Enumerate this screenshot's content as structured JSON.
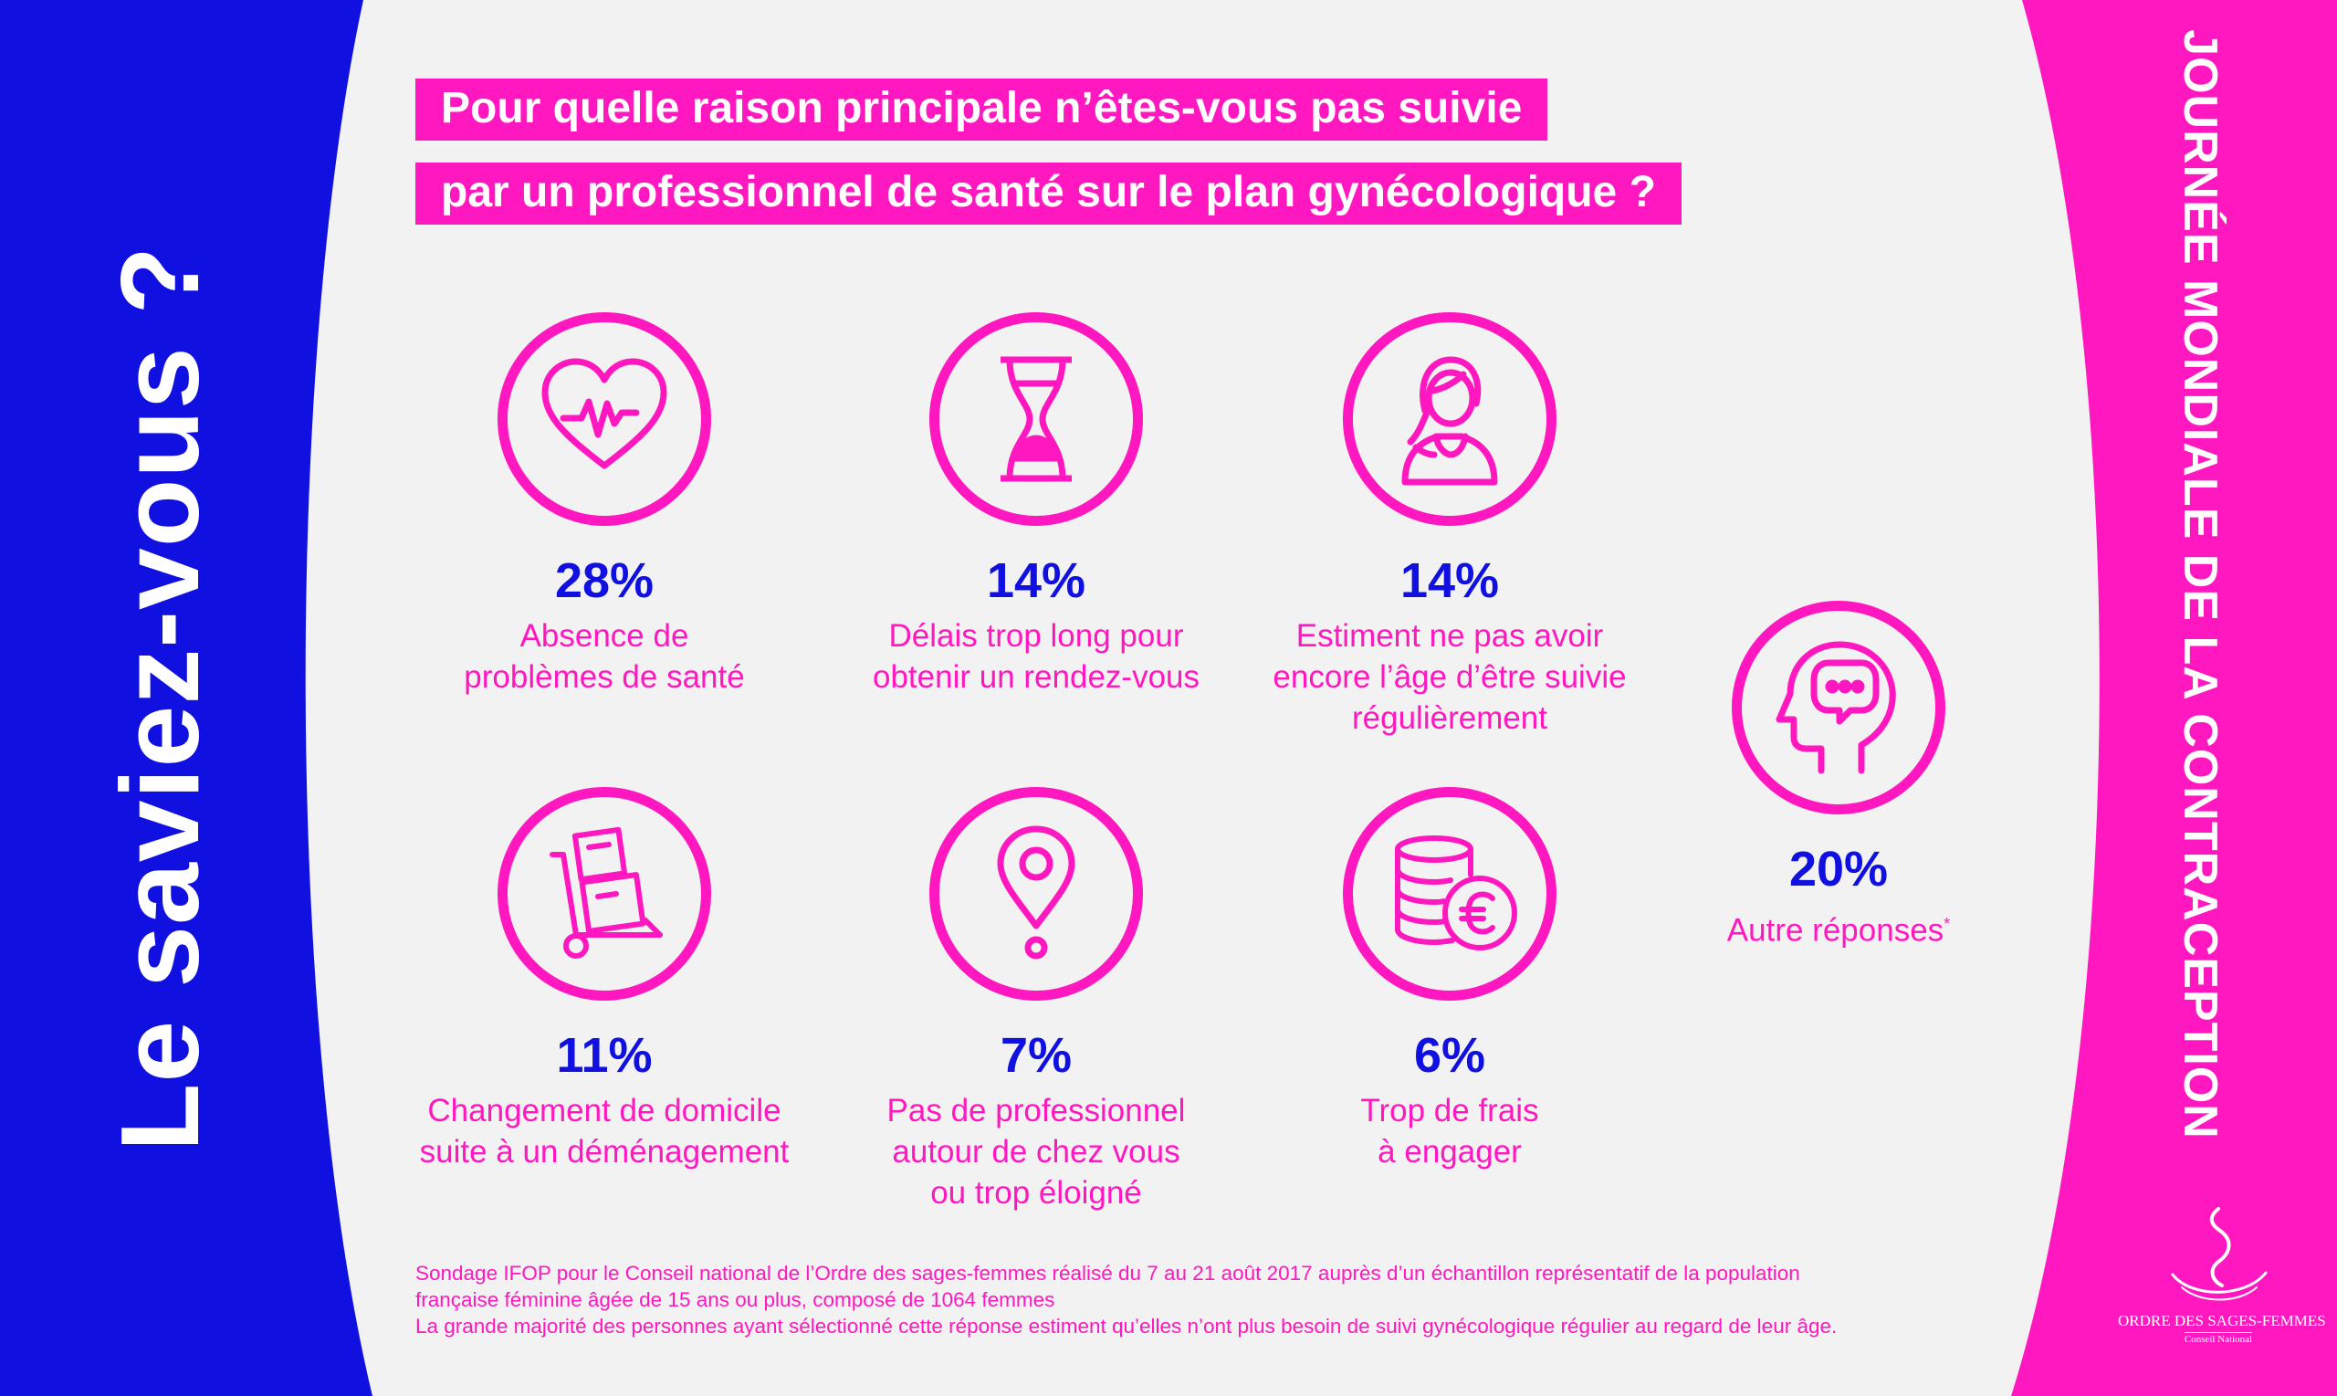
{
  "colors": {
    "blue": "#1010e0",
    "pink": "#ff17c0",
    "background": "#f2f2f2",
    "white": "#ffffff"
  },
  "side_left": {
    "text": "Le saviez-vous ?"
  },
  "side_right": {
    "text": "JOURNÉE MONDIALE DE LA CONTRACEPTION"
  },
  "title": {
    "line1": "Pour quelle raison principale n’êtes-vous pas suivie",
    "line2": "par un professionnel de santé sur le plan gynécologique ?"
  },
  "stats": [
    {
      "icon": "heart-pulse-icon",
      "percent": "28%",
      "label_line1": "Absence de",
      "label_line2": "problèmes de santé",
      "label_line3": ""
    },
    {
      "icon": "hourglass-icon",
      "percent": "14%",
      "label_line1": "Délais trop long pour",
      "label_line2": "obtenir un rendez-vous",
      "label_line3": ""
    },
    {
      "icon": "young-woman-icon",
      "percent": "14%",
      "label_line1": "Estiment ne pas avoir",
      "label_line2": "encore l’âge d’être suivie",
      "label_line3": "régulièrement"
    },
    {
      "icon": "moving-cart-icon",
      "percent": "11%",
      "label_line1": "Changement de domicile",
      "label_line2": "suite à un déménagement",
      "label_line3": ""
    },
    {
      "icon": "location-pin-icon",
      "percent": "7%",
      "label_line1": "Pas de professionnel",
      "label_line2": "autour de chez vous",
      "label_line3": "ou trop éloigné"
    },
    {
      "icon": "euro-coins-icon",
      "percent": "6%",
      "label_line1": "Trop de frais",
      "label_line2": "à engager",
      "label_line3": ""
    },
    {
      "icon": "head-speech-icon",
      "percent": "20%",
      "label_line1": "Autre réponses",
      "label_line2": "",
      "label_line3": "",
      "asterisk": "*"
    }
  ],
  "footer": {
    "line1": "Sondage IFOP pour le Conseil national de l’Ordre des sages-femmes réalisé du 7 au 21 août 2017 auprès d’un échantillon représentatif de la population",
    "line2": "française féminine âgée de 15 ans ou plus, composé de 1064 femmes",
    "line3": "La grande majorité des personnes ayant sélectionné cette réponse estiment qu’elles n’ont plus besoin de suivi gynécologique régulier au regard de leur âge."
  },
  "logo": {
    "name": "ORDRE DES SAGES-FEMMES",
    "subtitle": "Conseil National"
  }
}
